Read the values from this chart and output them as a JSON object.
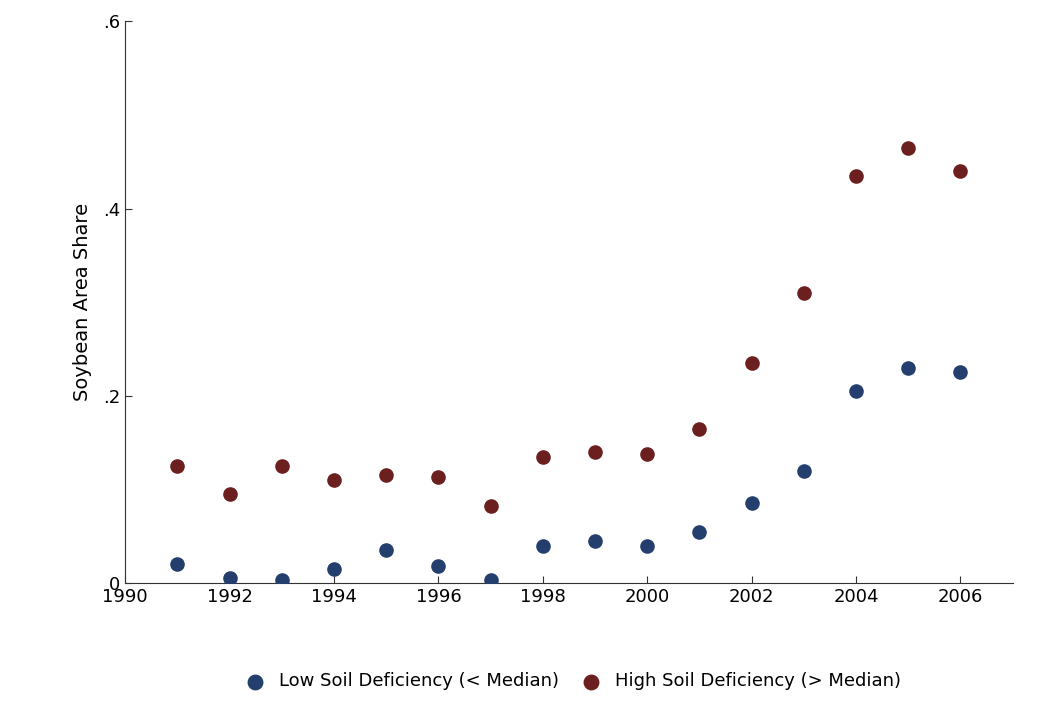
{
  "low_x": [
    1991,
    1992,
    1993,
    1994,
    1995,
    1996,
    1997,
    1998,
    1999,
    2000,
    2001,
    2002,
    2003,
    2004,
    2005,
    2006
  ],
  "low_y": [
    0.02,
    0.005,
    0.003,
    0.015,
    0.035,
    0.018,
    0.003,
    0.04,
    0.045,
    0.04,
    0.055,
    0.085,
    0.12,
    0.205,
    0.23,
    0.225
  ],
  "high_x": [
    1991,
    1992,
    1993,
    1994,
    1995,
    1996,
    1997,
    1998,
    1999,
    2000,
    2001,
    2002,
    2003,
    2004,
    2005,
    2006
  ],
  "high_y": [
    0.125,
    0.095,
    0.125,
    0.11,
    0.115,
    0.113,
    0.082,
    0.135,
    0.14,
    0.138,
    0.165,
    0.235,
    0.31,
    0.435,
    0.465,
    0.44
  ],
  "low_color": "#243f6e",
  "high_color": "#6b1f1f",
  "low_label": "Low Soil Deficiency (< Median)",
  "high_label": "High Soil Deficiency (> Median)",
  "ylabel": "Soybean Area Share",
  "xlim": [
    1990,
    2007
  ],
  "ylim": [
    0,
    0.6
  ],
  "yticks": [
    0,
    0.2,
    0.4,
    0.6
  ],
  "ytick_labels": [
    "0",
    ".2",
    ".4",
    ".6"
  ],
  "xticks": [
    1990,
    1992,
    1994,
    1996,
    1998,
    2000,
    2002,
    2004,
    2006
  ],
  "marker_size": 90,
  "background_color": "#ffffff",
  "tick_fontsize": 13,
  "ylabel_fontsize": 14,
  "legend_fontsize": 13
}
